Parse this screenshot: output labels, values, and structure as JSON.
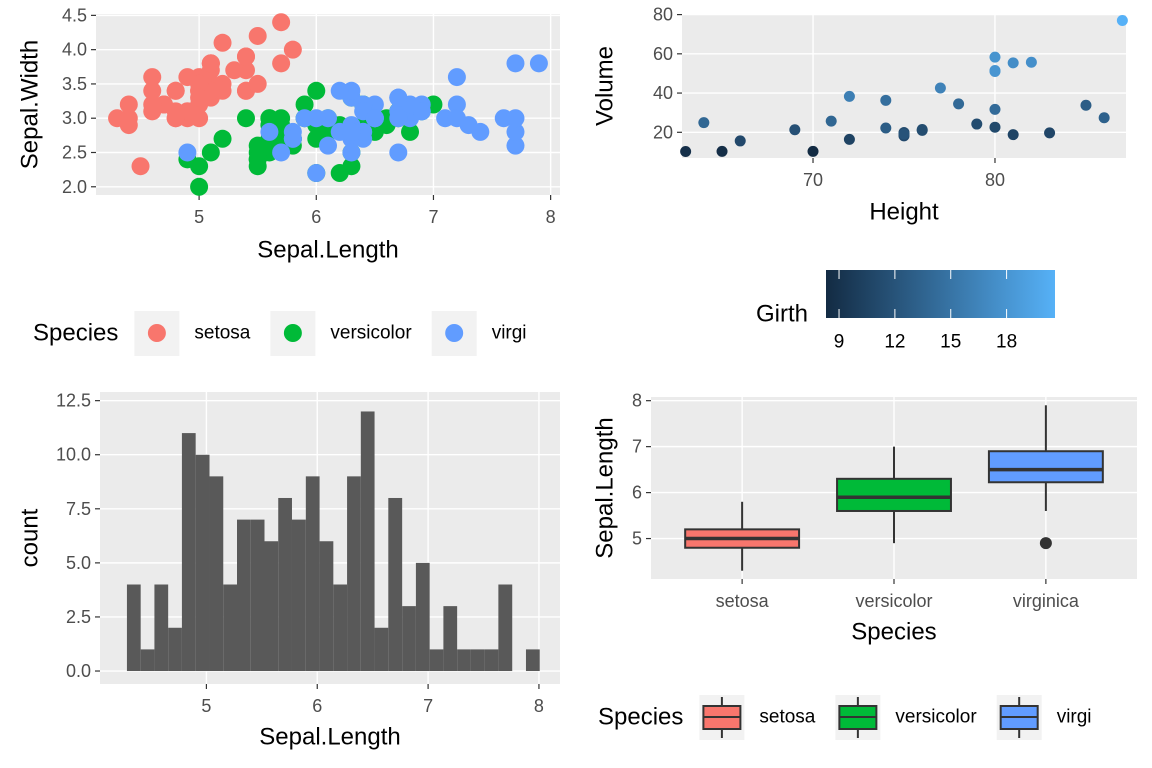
{
  "chart_data": [
    {
      "type": "scatter",
      "x_label": "Sepal.Length",
      "y_label": "Sepal.Width",
      "xlim": [
        4.12,
        8.08
      ],
      "ylim": [
        1.88,
        4.52
      ],
      "xticks": [
        5,
        6,
        7,
        8
      ],
      "yticks": [
        {
          "value": 2,
          "label": "2.0"
        },
        {
          "value": 2.5,
          "label": "2.5"
        },
        {
          "value": 3,
          "label": "3.0"
        },
        {
          "value": 3.5,
          "label": "3.5"
        },
        {
          "value": 4,
          "label": "4.0"
        },
        {
          "value": 4.5,
          "label": "4.5"
        }
      ],
      "grid": true,
      "legend": {
        "title": "Species",
        "position": "bottom"
      },
      "series": [
        {
          "name": "setosa",
          "color": "#F8766D",
          "x": [
            5.1,
            4.9,
            4.7,
            4.6,
            5.0,
            5.4,
            4.6,
            5.0,
            4.4,
            4.9,
            5.4,
            4.8,
            4.8,
            4.3,
            5.8,
            5.7,
            5.4,
            5.1,
            5.7,
            5.1,
            5.4,
            5.1,
            4.6,
            5.1,
            4.8,
            5.0,
            5.0,
            5.2,
            5.2,
            4.7,
            4.8,
            5.4,
            5.2,
            5.5,
            4.9,
            5.0,
            5.5,
            4.9,
            4.4,
            5.1,
            5.0,
            4.5,
            4.4,
            5.0,
            5.1,
            4.8,
            5.1,
            4.6,
            5.3,
            5.0
          ],
          "values": [
            3.5,
            3.0,
            3.2,
            3.1,
            3.6,
            3.9,
            3.4,
            3.4,
            2.9,
            3.1,
            3.7,
            3.4,
            3.0,
            3.0,
            4.0,
            4.4,
            3.9,
            3.5,
            3.8,
            3.8,
            3.4,
            3.7,
            3.6,
            3.3,
            3.4,
            3.0,
            3.4,
            3.5,
            3.4,
            3.2,
            3.1,
            3.4,
            4.1,
            4.2,
            3.1,
            3.2,
            3.5,
            3.6,
            3.0,
            3.4,
            3.5,
            2.3,
            3.2,
            3.5,
            3.8,
            3.0,
            3.8,
            3.2,
            3.7,
            3.3
          ]
        },
        {
          "name": "versicolor",
          "color": "#00BA38",
          "x": [
            7.0,
            6.4,
            6.9,
            5.5,
            6.5,
            5.7,
            6.3,
            4.9,
            6.6,
            5.2,
            5.0,
            5.9,
            6.0,
            6.1,
            5.6,
            6.7,
            5.6,
            5.8,
            6.2,
            5.6,
            5.9,
            6.1,
            6.3,
            6.1,
            6.4,
            6.6,
            6.8,
            6.7,
            6.0,
            5.7,
            5.5,
            5.5,
            5.8,
            6.0,
            5.4,
            6.0,
            6.7,
            6.3,
            5.6,
            5.5,
            5.5,
            6.1,
            5.8,
            5.0,
            5.6,
            5.7,
            5.7,
            6.2,
            5.1,
            5.7
          ],
          "values": [
            3.2,
            3.2,
            3.1,
            2.3,
            2.8,
            2.8,
            3.3,
            2.4,
            2.9,
            2.7,
            2.0,
            3.0,
            2.2,
            2.9,
            2.9,
            3.1,
            3.0,
            2.7,
            2.2,
            2.5,
            3.2,
            2.8,
            2.5,
            2.8,
            2.9,
            3.0,
            2.8,
            3.0,
            2.9,
            2.6,
            2.4,
            2.4,
            2.7,
            2.7,
            3.0,
            3.4,
            3.1,
            2.3,
            3.0,
            2.5,
            2.6,
            3.0,
            2.6,
            2.3,
            2.7,
            3.0,
            2.9,
            2.9,
            2.5,
            2.8
          ]
        },
        {
          "name": "virgi",
          "color": "#619CFF",
          "x": [
            6.3,
            5.8,
            7.1,
            6.3,
            6.5,
            7.6,
            4.9,
            7.3,
            6.7,
            7.2,
            6.5,
            6.4,
            6.8,
            5.7,
            5.8,
            6.4,
            6.5,
            7.7,
            7.7,
            6.0,
            6.9,
            5.6,
            7.7,
            6.3,
            6.7,
            7.2,
            6.2,
            6.1,
            6.4,
            7.2,
            7.4,
            7.9,
            6.4,
            6.3,
            6.1,
            7.7,
            6.3,
            6.4,
            6.0,
            6.9,
            6.7,
            6.9,
            5.8,
            6.8,
            6.7,
            6.7,
            6.3,
            6.5,
            6.2,
            5.9
          ],
          "values": [
            3.3,
            2.7,
            3.0,
            2.9,
            3.0,
            3.0,
            2.5,
            2.9,
            2.5,
            3.6,
            3.2,
            2.7,
            3.0,
            2.5,
            2.8,
            3.2,
            3.0,
            3.8,
            2.6,
            2.2,
            3.2,
            2.8,
            2.8,
            2.7,
            3.3,
            3.2,
            2.8,
            3.0,
            2.8,
            3.0,
            2.8,
            3.8,
            2.8,
            2.8,
            2.6,
            3.0,
            3.4,
            3.1,
            3.0,
            3.1,
            3.1,
            3.1,
            2.7,
            3.2,
            3.3,
            3.0,
            2.5,
            3.0,
            3.4,
            3.0
          ]
        }
      ]
    },
    {
      "type": "scatter",
      "x_label": "Height",
      "y_label": "Volume",
      "xlim": [
        62.8,
        87.2
      ],
      "ylim": [
        6.9,
        80.3
      ],
      "xticks": [
        70,
        80
      ],
      "yticks": [
        20,
        40,
        60,
        80
      ],
      "grid": true,
      "x": [
        70,
        65,
        63,
        72,
        81,
        83,
        66,
        75,
        80,
        75,
        79,
        76,
        76,
        69,
        75,
        74,
        85,
        86,
        71,
        64,
        78,
        80,
        74,
        72,
        77,
        81,
        82,
        80,
        80,
        80,
        87
      ],
      "values": [
        10.3,
        10.3,
        10.2,
        16.4,
        18.8,
        19.7,
        15.6,
        18.2,
        22.6,
        19.9,
        24.2,
        21.0,
        21.4,
        21.3,
        19.1,
        22.2,
        33.8,
        27.4,
        25.7,
        24.9,
        34.5,
        31.7,
        36.3,
        38.3,
        42.6,
        55.4,
        55.7,
        58.3,
        51.5,
        51.0,
        77.0
      ],
      "color_values": [
        8.3,
        8.6,
        8.8,
        10.5,
        10.7,
        10.8,
        11.0,
        11.0,
        11.1,
        11.2,
        11.3,
        11.4,
        11.4,
        11.7,
        12.0,
        12.9,
        12.9,
        13.3,
        13.7,
        13.8,
        14.0,
        14.2,
        14.5,
        16.0,
        16.3,
        17.3,
        17.5,
        17.9,
        18.0,
        18.0,
        20.6
      ],
      "colorbar": {
        "title": "Girth",
        "lim": [
          8.3,
          20.6
        ],
        "ticks": [
          9,
          12,
          15,
          18
        ],
        "colors": [
          "#132B43",
          "#56B1F7"
        ]
      }
    },
    {
      "type": "histogram",
      "x_label": "Sepal.Length",
      "y_label": "count",
      "xlim": [
        4.04,
        8.19
      ],
      "ylim": [
        -0.6,
        12.9
      ],
      "xticks": [
        5,
        6,
        7,
        8
      ],
      "yticks": [
        {
          "value": 0,
          "label": "0.0"
        },
        {
          "value": 2.5,
          "label": "2.5"
        },
        {
          "value": 5,
          "label": "5.0"
        },
        {
          "value": 7.5,
          "label": "7.5"
        },
        {
          "value": 10,
          "label": "10.0"
        },
        {
          "value": 12.5,
          "label": "12.5"
        }
      ],
      "grid": true,
      "color": "#595959",
      "bins": [
        4.283,
        4.407,
        4.531,
        4.655,
        4.779,
        4.903,
        5.028,
        5.152,
        5.276,
        5.4,
        5.524,
        5.648,
        5.772,
        5.897,
        6.021,
        6.145,
        6.269,
        6.393,
        6.517,
        6.641,
        6.766,
        6.89,
        7.014,
        7.138,
        7.262,
        7.386,
        7.51,
        7.634,
        7.759,
        7.883,
        8.007
      ],
      "values": [
        4,
        1,
        4,
        2,
        11,
        10,
        9,
        4,
        7,
        7,
        6,
        8,
        7,
        9,
        6,
        4,
        9,
        12,
        2,
        8,
        3,
        5,
        1,
        3,
        1,
        1,
        1,
        4,
        0,
        1
      ]
    },
    {
      "type": "box",
      "x_label": "Species",
      "y_label": "Sepal.Length",
      "categories": [
        "setosa",
        "versicolor",
        "virginica"
      ],
      "ylim": [
        4.12,
        8.08
      ],
      "yticks": [
        5,
        6,
        7,
        8
      ],
      "grid": true,
      "colors": [
        "#F8766D",
        "#00BA38",
        "#619CFF"
      ],
      "boxes": [
        {
          "min": 4.3,
          "q1": 4.8,
          "median": 5.0,
          "q3": 5.2,
          "max": 5.8
        },
        {
          "min": 4.9,
          "q1": 5.6,
          "median": 5.9,
          "q3": 6.3,
          "max": 7.0
        },
        {
          "min": 5.6,
          "q1": 6.225,
          "median": 6.5,
          "q3": 6.9,
          "max": 7.9,
          "outliers": [
            4.9
          ]
        }
      ],
      "legend": {
        "title": "Species",
        "position": "bottom",
        "names": [
          "setosa",
          "versicolor",
          "virgi"
        ]
      }
    }
  ]
}
